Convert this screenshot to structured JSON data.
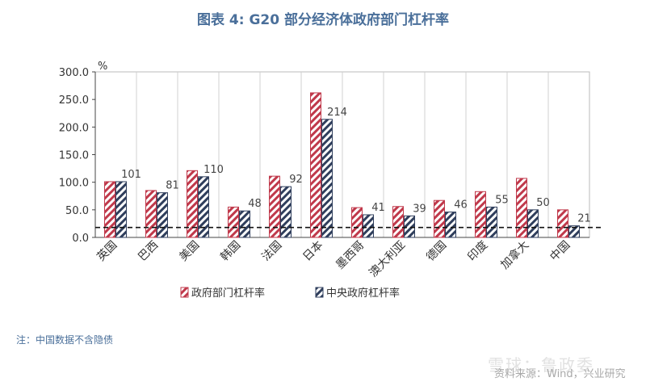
{
  "title": "图表 4:   G20 部分经济体政府部门杠杆率",
  "note": "注：中国数据不含隐债",
  "source": "资料来源：Wind，兴业研究",
  "watermark": "雪球：鲁政委",
  "colors": {
    "series1": "#c0394b",
    "series2": "#2f3e5c",
    "axis": "#444444",
    "grid": "#d0d0d0"
  },
  "chart_data": {
    "type": "bar",
    "y_unit_label": "%",
    "ylim": [
      0,
      300
    ],
    "yticks": [
      "0.0",
      "50.0",
      "100.0",
      "150.0",
      "200.0",
      "250.0",
      "300.0"
    ],
    "grid": true,
    "legend_position": "bottom",
    "categories": [
      "英国",
      "巴西",
      "美国",
      "韩国",
      "法国",
      "日本",
      "墨西哥",
      "澳大利亚",
      "德国",
      "印度",
      "加拿大",
      "中国"
    ],
    "series": [
      {
        "name": "政府部门杠杆率",
        "values": [
          101,
          85,
          121,
          55,
          111,
          262,
          54,
          56,
          67,
          83,
          107,
          50
        ]
      },
      {
        "name": "中央政府杠杆率",
        "values": [
          101,
          81,
          110,
          48,
          92,
          214,
          41,
          39,
          46,
          55,
          50,
          21
        ],
        "labels": [
          "101",
          "81",
          "110",
          "48",
          "92",
          "214",
          "41",
          "39",
          "46",
          "55",
          "50",
          "21"
        ]
      }
    ],
    "reference_line": {
      "value": 18,
      "style": "dashed"
    }
  }
}
